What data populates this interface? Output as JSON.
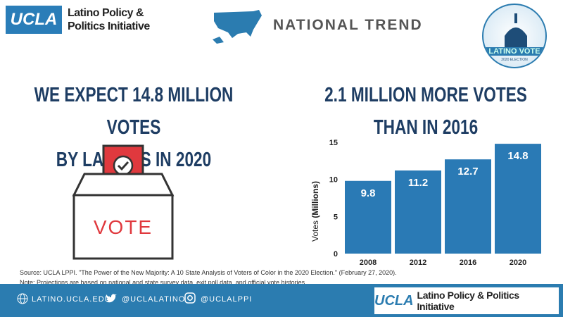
{
  "header": {
    "logo_text": "UCLA",
    "org_line1": "Latino Policy &",
    "org_line2": "Politics Initiative",
    "title": "NATIONAL TREND",
    "badge_text": "LATINO VOTE",
    "badge_sub": "2020 ELECTION"
  },
  "left_headline": [
    "WE EXPECT 14.8  MILLION VOTES",
    "BY LATINOS IN 2020"
  ],
  "right_headline": [
    "2.1 MILLION MORE VOTES",
    "THAN IN 2016"
  ],
  "ballot_box": {
    "label": "VOTE"
  },
  "chart_data": {
    "type": "bar",
    "categories": [
      "2008",
      "2012",
      "2016",
      "2020"
    ],
    "values": [
      9.8,
      11.2,
      12.7,
      14.8
    ],
    "data_labels": [
      "9.8",
      "11.2",
      "12.7",
      "14.8"
    ],
    "ylabel_prefix": "Votes ",
    "ylabel_bold": "(Millions)",
    "ylim": [
      0,
      15
    ],
    "yticks": [
      "0",
      "5",
      "10",
      "15"
    ],
    "bar_color": "#2a7ab5",
    "grid": false
  },
  "source": "Source: UCLA LPPI. \"The Power of the New Majority: A 10 State Analysis of Voters of Color in the 2020 Election.\" (February 27, 2020).",
  "note": "Note: Projections are based on national and state survey data, exit poll data, and official vote histories.",
  "footer": {
    "website": "LATINO.UCLA.EDU",
    "twitter": "@UCLALATINO",
    "instagram": "@UCLALPPI",
    "logo_ucla": "UCLA",
    "logo_text": "Latino Policy & Politics Initiative"
  },
  "colors": {
    "brand_blue": "#2b7cb0",
    "headline": "#1e3d63",
    "ballot_red": "#e0393e"
  }
}
